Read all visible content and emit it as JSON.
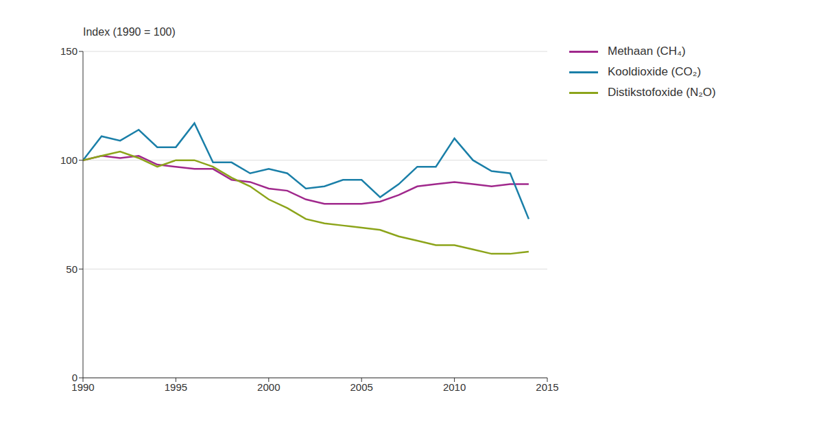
{
  "chart_data": {
    "type": "line",
    "ylabel": "Index (1990 = 100)",
    "x": [
      1990,
      1991,
      1992,
      1993,
      1994,
      1995,
      1996,
      1997,
      1998,
      1999,
      2000,
      2001,
      2002,
      2003,
      2004,
      2005,
      2006,
      2007,
      2008,
      2009,
      2010,
      2011,
      2012,
      2013,
      2014
    ],
    "series": [
      {
        "name": "Methaan (CH₄)",
        "color": "#a0288c",
        "values": [
          100,
          102,
          101,
          102,
          98,
          97,
          96,
          96,
          91,
          90,
          87,
          86,
          82,
          80,
          80,
          80,
          81,
          84,
          88,
          89,
          90,
          89,
          88,
          89,
          89
        ]
      },
      {
        "name": "Kooldioxide (CO₂)",
        "color": "#1a7fa8",
        "values": [
          100,
          111,
          109,
          114,
          106,
          106,
          117,
          99,
          99,
          94,
          96,
          94,
          87,
          88,
          91,
          91,
          83,
          89,
          97,
          97,
          110,
          100,
          95,
          94,
          73
        ]
      },
      {
        "name": "Distikstofoxide (N₂O)",
        "color": "#8ca41a",
        "values": [
          100,
          102,
          104,
          101,
          97,
          100,
          100,
          97,
          92,
          88,
          82,
          78,
          73,
          71,
          70,
          69,
          68,
          65,
          63,
          61,
          61,
          59,
          57,
          57,
          58
        ]
      }
    ],
    "xlim": [
      1990,
      2015
    ],
    "xticks": [
      1990,
      1995,
      2000,
      2005,
      2010,
      2015
    ],
    "ylim": [
      0,
      150
    ],
    "yticks": [
      0,
      50,
      100,
      150
    ],
    "grid": true,
    "legend": "right"
  }
}
